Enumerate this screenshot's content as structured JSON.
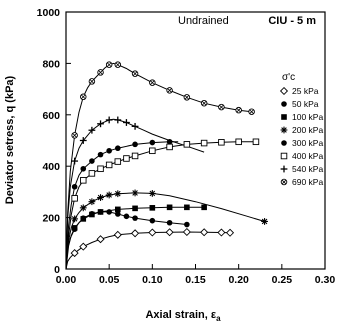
{
  "chart_data": {
    "type": "line",
    "title": "",
    "annotations": {
      "mode": "Undrained",
      "test": "CIU - 5 m"
    },
    "xlabel": "Axial strain, ε",
    "xlabel_subscript": "a",
    "ylabel": "Deviator setress, q  (kPa)",
    "xlim": [
      0,
      0.3
    ],
    "ylim": [
      0,
      1000
    ],
    "xticks": [
      "0.00",
      "0.05",
      "0.10",
      "0.15",
      "0.20",
      "0.25",
      "0.30"
    ],
    "yticks": [
      "0",
      "200",
      "400",
      "600",
      "800",
      "1000"
    ],
    "xtick_values": [
      0,
      0.05,
      0.1,
      0.15,
      0.2,
      0.25,
      0.3
    ],
    "ytick_values": [
      0,
      200,
      400,
      600,
      800,
      1000
    ],
    "grid": false,
    "legend": {
      "title": "σ'c",
      "placement": "right"
    },
    "series": [
      {
        "name": "25 kPa",
        "marker": "diamond-open",
        "x": [
          0,
          0.002,
          0.005,
          0.01,
          0.015,
          0.02,
          0.03,
          0.04,
          0.05,
          0.06,
          0.08,
          0.1,
          0.12,
          0.14,
          0.16,
          0.18,
          0.19
        ],
        "y": [
          0,
          30,
          45,
          62,
          75,
          87,
          103,
          116,
          126,
          133,
          139,
          142,
          143,
          144,
          143,
          142,
          141
        ],
        "marker_x": [
          0.01,
          0.02,
          0.04,
          0.06,
          0.08,
          0.1,
          0.12,
          0.14,
          0.16,
          0.18,
          0.19
        ],
        "marker_y": [
          62,
          87,
          116,
          133,
          139,
          142,
          143,
          144,
          143,
          142,
          141
        ]
      },
      {
        "name": "50 kPa",
        "marker": "circle-filled",
        "x": [
          0,
          0.002,
          0.005,
          0.01,
          0.015,
          0.02,
          0.03,
          0.04,
          0.05,
          0.06,
          0.07,
          0.08,
          0.1,
          0.12,
          0.14
        ],
        "y": [
          0,
          80,
          120,
          155,
          180,
          198,
          215,
          222,
          222,
          214,
          205,
          198,
          188,
          180,
          173
        ],
        "marker_x": [
          0.01,
          0.02,
          0.03,
          0.04,
          0.05,
          0.06,
          0.07,
          0.08,
          0.1,
          0.12,
          0.14
        ],
        "marker_y": [
          155,
          198,
          215,
          222,
          222,
          214,
          205,
          198,
          188,
          180,
          173
        ]
      },
      {
        "name": "100 kPa",
        "marker": "square-filled",
        "x": [
          0,
          0.003,
          0.006,
          0.01,
          0.015,
          0.02,
          0.03,
          0.04,
          0.06,
          0.08,
          0.1,
          0.12,
          0.14,
          0.16
        ],
        "y": [
          0,
          90,
          130,
          160,
          180,
          195,
          212,
          222,
          232,
          236,
          238,
          240,
          240,
          240
        ],
        "marker_x": [
          0.01,
          0.02,
          0.03,
          0.04,
          0.06,
          0.08,
          0.1,
          0.12,
          0.14,
          0.16
        ],
        "marker_y": [
          160,
          195,
          212,
          222,
          232,
          236,
          238,
          240,
          240,
          240
        ]
      },
      {
        "name": "200 kPa",
        "marker": "asterisk",
        "x": [
          0,
          0.003,
          0.006,
          0.01,
          0.015,
          0.02,
          0.03,
          0.04,
          0.05,
          0.06,
          0.08,
          0.1,
          0.12,
          0.15,
          0.18,
          0.21,
          0.23
        ],
        "y": [
          0,
          110,
          160,
          195,
          220,
          238,
          262,
          278,
          288,
          293,
          296,
          294,
          285,
          262,
          235,
          205,
          185
        ],
        "marker_x": [
          0.01,
          0.02,
          0.03,
          0.04,
          0.05,
          0.06,
          0.08,
          0.1,
          0.23
        ],
        "marker_y": [
          195,
          238,
          262,
          278,
          288,
          293,
          296,
          294,
          185
        ]
      },
      {
        "name": "300 kPa",
        "marker": "circle-filled",
        "x": [
          0,
          0.003,
          0.006,
          0.01,
          0.015,
          0.02,
          0.03,
          0.04,
          0.05,
          0.06,
          0.08,
          0.1,
          0.12,
          0.13
        ],
        "y": [
          0,
          170,
          250,
          320,
          365,
          390,
          420,
          445,
          460,
          470,
          485,
          492,
          495,
          495
        ],
        "marker_x": [
          0.01,
          0.02,
          0.03,
          0.04,
          0.05,
          0.06,
          0.08,
          0.1,
          0.12
        ],
        "marker_y": [
          320,
          390,
          420,
          445,
          460,
          470,
          485,
          492,
          495
        ]
      },
      {
        "name": "400 kPa",
        "marker": "square-open",
        "x": [
          0,
          0.003,
          0.006,
          0.01,
          0.015,
          0.02,
          0.03,
          0.04,
          0.05,
          0.06,
          0.07,
          0.08,
          0.1,
          0.12,
          0.14,
          0.16,
          0.18,
          0.2,
          0.22
        ],
        "y": [
          0,
          130,
          210,
          275,
          320,
          345,
          372,
          390,
          405,
          418,
          430,
          440,
          460,
          475,
          485,
          490,
          493,
          495,
          495
        ],
        "marker_x": [
          0.01,
          0.02,
          0.03,
          0.04,
          0.05,
          0.06,
          0.07,
          0.08,
          0.1,
          0.12,
          0.14,
          0.16,
          0.18,
          0.2,
          0.22
        ],
        "marker_y": [
          275,
          345,
          372,
          390,
          405,
          418,
          430,
          440,
          460,
          475,
          485,
          490,
          493,
          495,
          495
        ]
      },
      {
        "name": "540 kPa",
        "marker": "plus",
        "x": [
          0,
          0.002,
          0.005,
          0.01,
          0.015,
          0.02,
          0.03,
          0.04,
          0.05,
          0.055,
          0.06,
          0.07,
          0.08,
          0.09,
          0.1,
          0.12,
          0.14,
          0.16
        ],
        "y": [
          0,
          200,
          320,
          420,
          470,
          500,
          540,
          565,
          580,
          583,
          580,
          570,
          555,
          540,
          525,
          500,
          478,
          455
        ],
        "marker_x": [
          0.01,
          0.02,
          0.03,
          0.04,
          0.05,
          0.06,
          0.07,
          0.08
        ],
        "marker_y": [
          420,
          500,
          540,
          565,
          580,
          580,
          570,
          555
        ]
      },
      {
        "name": "690 kPa",
        "marker": "circle-cross",
        "x": [
          0,
          0.002,
          0.005,
          0.01,
          0.015,
          0.02,
          0.025,
          0.03,
          0.04,
          0.045,
          0.05,
          0.055,
          0.06,
          0.07,
          0.08,
          0.1,
          0.12,
          0.14,
          0.16,
          0.18,
          0.2,
          0.215
        ],
        "y": [
          0,
          220,
          380,
          520,
          610,
          670,
          705,
          730,
          765,
          782,
          795,
          800,
          795,
          780,
          760,
          725,
          695,
          668,
          645,
          630,
          618,
          612
        ],
        "marker_x": [
          0.01,
          0.02,
          0.03,
          0.04,
          0.05,
          0.06,
          0.08,
          0.1,
          0.12,
          0.14,
          0.16,
          0.18,
          0.2,
          0.215
        ],
        "marker_y": [
          520,
          670,
          730,
          765,
          795,
          795,
          760,
          725,
          695,
          668,
          645,
          630,
          618,
          612
        ]
      }
    ]
  }
}
